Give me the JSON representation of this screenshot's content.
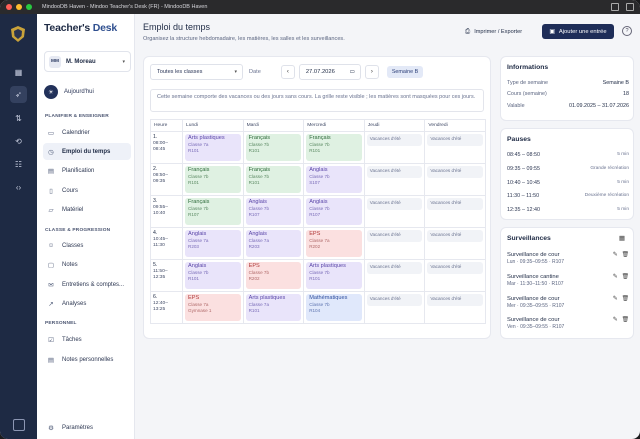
{
  "window": {
    "title": "MindooDB Haven - Mindoo Teacher's Desk (FR) - MindooDB Haven"
  },
  "colors": {
    "accent": "#1e2d58",
    "rail": "#1e2a44"
  },
  "rail": {
    "icons": [
      "dashboard-icon",
      "rocket-icon",
      "sort-icon",
      "sync-icon",
      "database-icon",
      "code-icon"
    ]
  },
  "sidebar": {
    "brand_a": "Teacher's",
    "brand_b": " Desk",
    "user": {
      "initials": "MM",
      "name": "M. Moreau"
    },
    "today": "Aujourd'hui",
    "section1": "PLANIFIER & ENSEIGNER",
    "section2": "CLASSE & PROGRESSION",
    "section3": "PERSONNEL",
    "items": [
      {
        "label": "Calendrier"
      },
      {
        "label": "Emploi du temps"
      },
      {
        "label": "Planification"
      },
      {
        "label": "Cours"
      },
      {
        "label": "Matériel"
      },
      {
        "label": "Classes"
      },
      {
        "label": "Notes"
      },
      {
        "label": "Entretiens & comptes..."
      },
      {
        "label": "Analyses"
      },
      {
        "label": "Tâches"
      },
      {
        "label": "Notes personnelles"
      },
      {
        "label": "Paramètres"
      }
    ]
  },
  "header": {
    "title": "Emploi du temps",
    "subtitle": "Organisez la structure hebdomadaire, les matières, les salles et les surveillances.",
    "export_label": "Imprimer / Exporter",
    "add_label": "Ajouter une entrée",
    "help": "?"
  },
  "schedule": {
    "class_filter": "Toutes les classes",
    "date_label": "Date",
    "date_value": "27.07.2026",
    "week_badge": "Semaine B",
    "note": "Cette semaine comporte des vacances ou des jours sans cours. La grille reste visible ; les matières sont masquées pour ces jours.",
    "col_hour": "Heure",
    "days": [
      "Lundi",
      "Mardi",
      "Mercredi",
      "Jeudi",
      "Vendredi"
    ],
    "vacation": "Vacances d'été",
    "periods": [
      {
        "num": "1.",
        "start": "08:00–",
        "end": "08:45",
        "lessons": [
          {
            "subject": "Arts plastiques",
            "class": "Classe 7a",
            "room": "R101",
            "color": "purple"
          },
          {
            "subject": "Français",
            "class": "Classe 7b",
            "room": "R101",
            "color": "green"
          },
          {
            "subject": "Français",
            "class": "Classe 7b",
            "room": "R101",
            "color": "green"
          }
        ]
      },
      {
        "num": "2.",
        "start": "08:50–",
        "end": "09:35",
        "lessons": [
          {
            "subject": "Français",
            "class": "Classe 7b",
            "room": "R101",
            "color": "green"
          },
          {
            "subject": "Français",
            "class": "Classe 7b",
            "room": "R101",
            "color": "green"
          },
          {
            "subject": "Anglais",
            "class": "Classe 7b",
            "room": "S107",
            "color": "purple"
          }
        ]
      },
      {
        "num": "3.",
        "start": "09:55–",
        "end": "10:40",
        "lessons": [
          {
            "subject": "Français",
            "class": "Classe 7b",
            "room": "R107",
            "color": "green"
          },
          {
            "subject": "Anglais",
            "class": "Classe 7b",
            "room": "R107",
            "color": "purple"
          },
          {
            "subject": "Anglais",
            "class": "Classe 7b",
            "room": "R107",
            "color": "purple"
          }
        ]
      },
      {
        "num": "4.",
        "start": "10:45–",
        "end": "11:30",
        "lessons": [
          {
            "subject": "Anglais",
            "class": "Classe 7a",
            "room": "R203",
            "color": "purple"
          },
          {
            "subject": "Anglais",
            "class": "Classe 7a",
            "room": "R203",
            "color": "purple"
          },
          {
            "subject": "EPS",
            "class": "Classe 7a",
            "room": "R202",
            "color": "red"
          }
        ]
      },
      {
        "num": "5.",
        "start": "11:50–",
        "end": "12:35",
        "lessons": [
          {
            "subject": "Anglais",
            "class": "Classe 7b",
            "room": "R101",
            "color": "purple"
          },
          {
            "subject": "EPS",
            "class": "Classe 7b",
            "room": "R202",
            "color": "red"
          },
          {
            "subject": "Arts plastiques",
            "class": "Classe 7b",
            "room": "R101",
            "color": "purple"
          }
        ]
      },
      {
        "num": "6.",
        "start": "12:40–",
        "end": "13:25",
        "lessons": [
          {
            "subject": "EPS",
            "class": "Classe 7a",
            "room": "Gymnase 1",
            "color": "red"
          },
          {
            "subject": "Arts plastiques",
            "class": "Classe 7a",
            "room": "R101",
            "color": "purple"
          },
          {
            "subject": "Mathématiques",
            "class": "Classe 7b",
            "room": "R104",
            "color": "blue"
          }
        ]
      }
    ]
  },
  "info": {
    "title": "Informations",
    "rows": [
      {
        "k": "Type de semaine",
        "v": "Semaine B"
      },
      {
        "k": "Cours (semaine)",
        "v": "18"
      },
      {
        "k": "Valable",
        "v": "01.09.2025 – 31.07.2026"
      }
    ]
  },
  "pauses": {
    "title": "Pauses",
    "rows": [
      {
        "time": "08:45 – 08:50",
        "label": "5 min"
      },
      {
        "time": "09:35 – 09:55",
        "label": "Grande récréation"
      },
      {
        "time": "10:40 – 10:45",
        "label": "5 min"
      },
      {
        "time": "11:30 – 11:50",
        "label": "Deuxième récréation"
      },
      {
        "time": "12:35 – 12:40",
        "label": "5 min"
      }
    ]
  },
  "surveillances": {
    "title": "Surveillances",
    "items": [
      {
        "name": "Surveillance de cour",
        "meta": "Lun · 09:35–09:55 · R107"
      },
      {
        "name": "Surveillance cantine",
        "meta": "Mar · 11:30–11:50 · R107"
      },
      {
        "name": "Surveillance de cour",
        "meta": "Mer · 09:35–09:55 · R107"
      },
      {
        "name": "Surveillance de cour",
        "meta": "Ven · 09:35–09:55 · R107"
      }
    ]
  }
}
